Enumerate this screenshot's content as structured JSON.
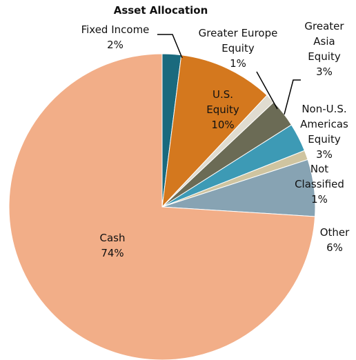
{
  "chart_data": {
    "type": "pie",
    "title": "Asset Allocation",
    "categories": [
      "Fixed Income",
      "U.S. Equity",
      "Greater Europe Equity",
      "Greater Asia Equity",
      "Non-U.S. Americas Equity",
      "Not Classified",
      "Other",
      "Cash"
    ],
    "values": [
      2,
      10,
      1,
      3,
      3,
      1,
      6,
      74
    ],
    "value_labels": [
      "2%",
      "10%",
      "1%",
      "3%",
      "3%",
      "1%",
      "6%",
      "74%"
    ],
    "colors": [
      "#1a6a7e",
      "#d4781e",
      "#e0dcd0",
      "#6b6b55",
      "#3d9ab5",
      "#cfc4a0",
      "#87a3b3",
      "#f2ae88"
    ]
  }
}
